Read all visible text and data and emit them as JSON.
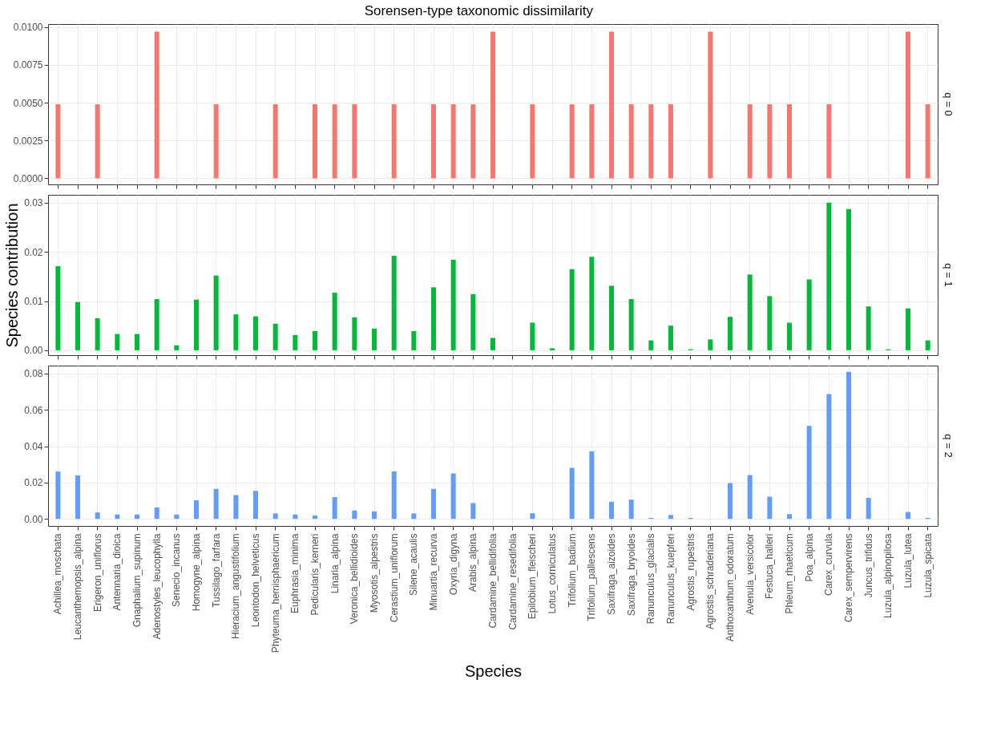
{
  "chart_data": [
    {
      "type": "bar",
      "title": "Sorensen-type taxonomic dissimilarity",
      "categories": [
        null,
        null,
        null,
        null,
        null,
        null,
        null,
        null,
        null,
        null,
        null,
        null,
        null,
        null,
        null,
        null,
        null,
        null,
        null,
        null,
        null,
        null,
        null,
        null,
        null,
        null,
        null,
        null,
        null,
        null,
        null,
        null,
        null,
        null,
        null,
        null,
        null,
        null,
        null,
        null,
        null,
        null,
        null,
        null,
        null
      ],
      "series": [
        {
          "name": "q = 0",
          "color": "#f8766d",
          "values": [
            0.0049,
            0,
            0.0049,
            0,
            0,
            0.0097,
            0,
            0,
            0.0049,
            0,
            0,
            0.0049,
            0,
            0.0049,
            0.0049,
            0.0049,
            0,
            0.0049,
            0,
            0.0049,
            0.0049,
            0.0049,
            0.0097,
            0,
            0.0049,
            0,
            0.0049,
            0.0049,
            0.0097,
            0.0049,
            0.0049,
            0.0049,
            0,
            0.0097,
            0,
            0.0049,
            0.0049,
            0.0049,
            0,
            0.0049,
            0,
            0,
            0,
            0.0097,
            0.0049
          ]
        }
      ],
      "ylim": [
        -0.0004,
        0.0102
      ],
      "yticks": [
        {
          "value": 0,
          "label": "0.0000"
        },
        {
          "value": 0.0025,
          "label": "0.0025"
        },
        {
          "value": 0.005,
          "label": "0.0050"
        },
        {
          "value": 0.0075,
          "label": "0.0075"
        },
        {
          "value": 0.01,
          "label": "0.0100"
        }
      ],
      "grid": true,
      "tick_labels": "y"
    },
    {
      "type": "bar",
      "ylabel": "Species contribution",
      "categories": [
        null,
        null,
        null,
        null,
        null,
        null,
        null,
        null,
        null,
        null,
        null,
        null,
        null,
        null,
        null,
        null,
        null,
        null,
        null,
        null,
        null,
        null,
        null,
        null,
        null,
        null,
        null,
        null,
        null,
        null,
        null,
        null,
        null,
        null,
        null,
        null,
        null,
        null,
        null,
        null,
        null,
        null,
        null,
        null,
        null
      ],
      "series": [
        {
          "name": "q = 1",
          "color": "#00ba38",
          "values": [
            0.0171,
            0.0098,
            0.0065,
            0.0033,
            0.0033,
            0.0104,
            0.001,
            0.0103,
            0.0152,
            0.0073,
            0.0069,
            0.0054,
            0.0031,
            0.0039,
            0.0117,
            0.0067,
            0.0044,
            0.0192,
            0.0039,
            0.0128,
            0.0184,
            0.0114,
            0.0025,
            0,
            0.0056,
            0.0004,
            0.0165,
            0.019,
            0.0131,
            0.0104,
            0.002,
            0.005,
            0.0002,
            0.0022,
            0.0068,
            0.0154,
            0.011,
            0.0056,
            0.0144,
            0.03,
            0.0287,
            0.0089,
            0.0002,
            0.0085,
            0.002
          ]
        }
      ],
      "ylim": [
        -0.001,
        0.0316
      ],
      "yticks": [
        {
          "value": 0,
          "label": "0.00"
        },
        {
          "value": 0.01,
          "label": "0.01"
        },
        {
          "value": 0.02,
          "label": "0.02"
        },
        {
          "value": 0.03,
          "label": "0.03"
        }
      ],
      "grid": true,
      "tick_labels": "y"
    },
    {
      "type": "bar",
      "xlabel": "Species",
      "categories": [
        "Achillea_moschata",
        "Leucanthemopsis_alpina",
        "Erigeron_uniflorus",
        "Antennaria_dioica",
        "Gnaphalium_supinum",
        "Adenostyles_leucophylla",
        "Senecio_incanus",
        "Homogyne_alpina",
        "Tussilago_farfara",
        "Hieracium_angustifolium",
        "Leontodon_helveticus",
        "Phyteuma_hemisphaericum",
        "Euphrasia_minima",
        "Pedicularis_kerneri",
        "Linaria_alpina",
        "Veronica_bellidioides",
        "Myosotis_alpestris",
        "Cerastium_uniflorum",
        "Silene_acaulis",
        "Minuartia_recurva",
        "Oxyria_digyna",
        "Arabis_alpina",
        "Cardamine_bellidifolia",
        "Cardamine_resedifolia",
        "Epilobium_fleischeri",
        "Lotus_corniculatus",
        "Trifolium_badium",
        "Trifolium_pallescens",
        "Saxifraga_aizoides",
        "Saxifraga_bryoides",
        "Ranunculus_glacialis",
        "Ranunculus_kuepferi",
        "Agrostis_rupestris",
        "Agrostis_schraderiana",
        "Anthoxanthum_odoratum",
        "Avenula_versicolor",
        "Festuca_halleri",
        "Phleum_rhaeticum",
        "Poa_alpina",
        "Carex_curvula",
        "Carex_sempervirens",
        "Juncus_trifidus",
        "Luzula_alpinopilosa",
        "Luzula_lutea",
        "Luzula_spicata"
      ],
      "series": [
        {
          "name": "q = 2",
          "color": "#619cff",
          "values": [
            0.0261,
            0.0239,
            0.0035,
            0.0024,
            0.0024,
            0.0063,
            0.0024,
            0.0102,
            0.0165,
            0.0131,
            0.0154,
            0.003,
            0.0024,
            0.0019,
            0.012,
            0.0046,
            0.0041,
            0.0261,
            0.003,
            0.0165,
            0.025,
            0.0087,
            0,
            0,
            0.0031,
            0,
            0.0281,
            0.0372,
            0.0094,
            0.0106,
            0.0005,
            0.0021,
            0.0005,
            0,
            0.0197,
            0.0241,
            0.0122,
            0.0026,
            0.0512,
            0.0687,
            0.081,
            0.0116,
            0,
            0.0038,
            0.0005
          ]
        }
      ],
      "ylim": [
        -0.0039,
        0.0844
      ],
      "yticks": [
        {
          "value": 0,
          "label": "0.00"
        },
        {
          "value": 0.02,
          "label": "0.02"
        },
        {
          "value": 0.04,
          "label": "0.04"
        },
        {
          "value": 0.06,
          "label": "0.06"
        },
        {
          "value": 0.08,
          "label": "0.08"
        }
      ],
      "grid": true
    }
  ]
}
